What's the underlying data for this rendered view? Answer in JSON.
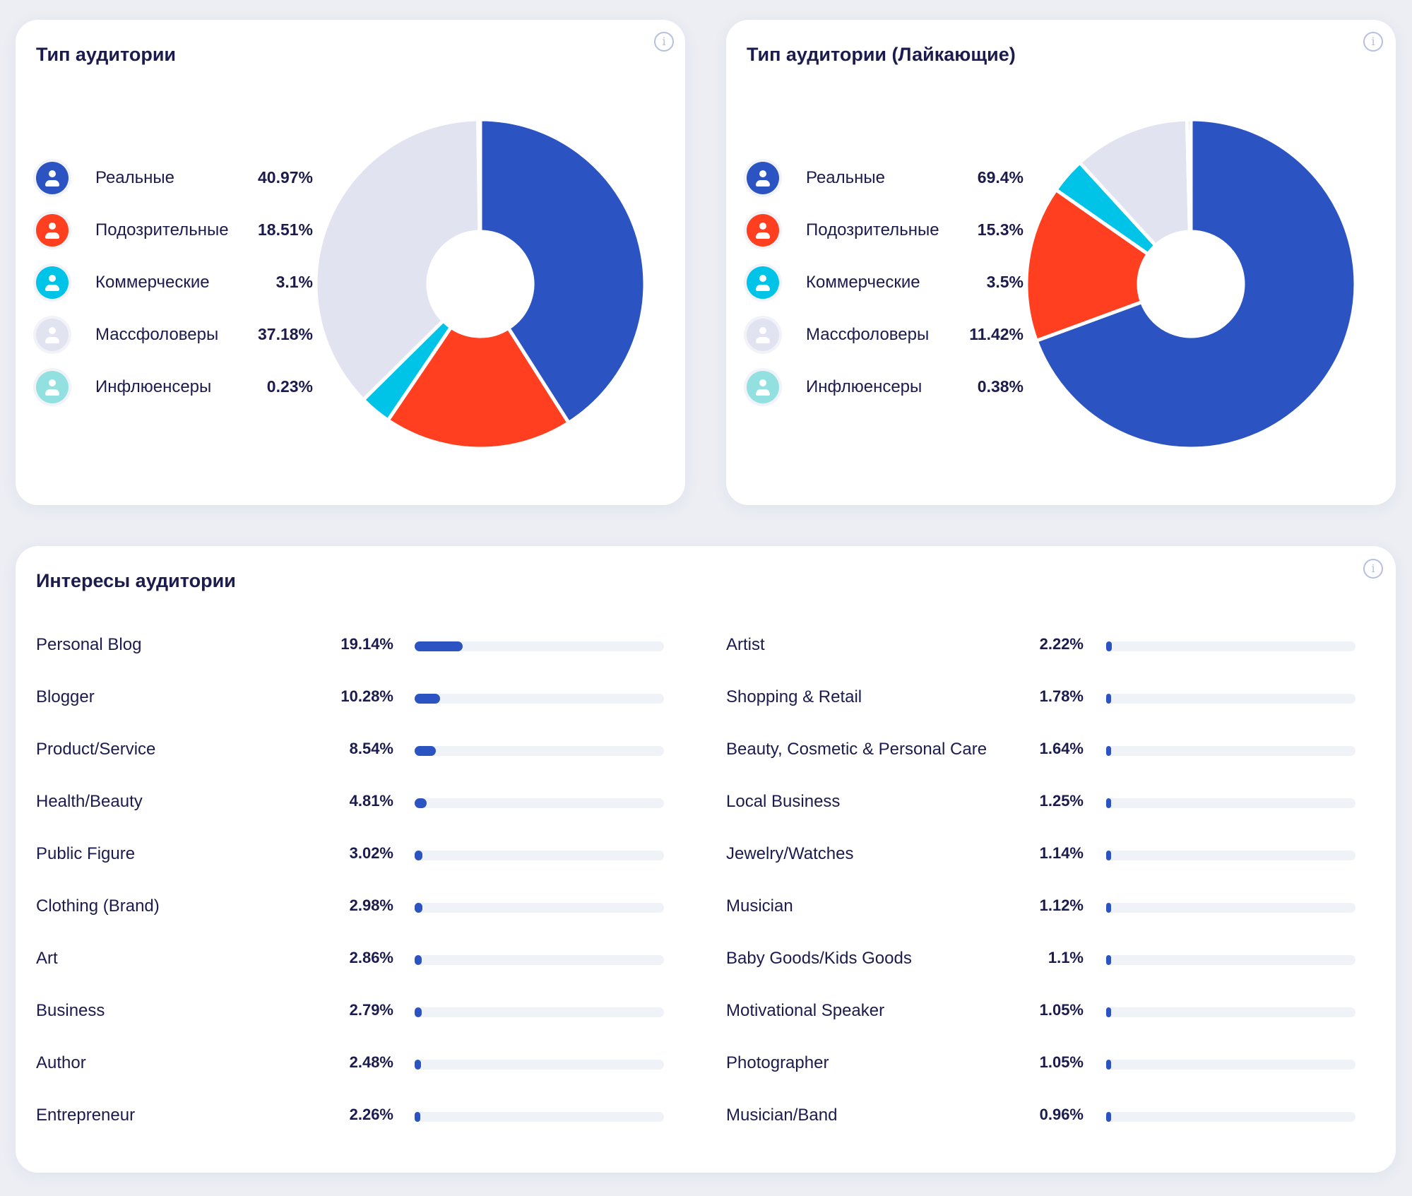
{
  "colors": {
    "real": "#2b54c2",
    "suspicious": "#ff3f1f",
    "commercial": "#00c3e8",
    "massfollowers": "#e1e3f1",
    "influencers": "#93e0e0",
    "bar": "#2b54c2"
  },
  "chart_data": [
    {
      "type": "pie",
      "title": "Тип аудитории",
      "categories": [
        "Реальные",
        "Подозрительные",
        "Коммерческие",
        "Массфоловеры",
        "Инфлюенсеры"
      ],
      "values": [
        40.97,
        18.51,
        3.1,
        37.18,
        0.23
      ],
      "labels": [
        "40.97%",
        "18.51%",
        "3.1%",
        "37.18%",
        "0.23%"
      ],
      "legend": "left"
    },
    {
      "type": "pie",
      "title": "Тип аудитории (Лайкающие)",
      "categories": [
        "Реальные",
        "Подозрительные",
        "Коммерческие",
        "Массфоловеры",
        "Инфлюенсеры"
      ],
      "values": [
        69.4,
        15.3,
        3.5,
        11.42,
        0.38
      ],
      "labels": [
        "69.4%",
        "15.3%",
        "3.5%",
        "11.42%",
        "0.38%"
      ],
      "legend": "left"
    },
    {
      "type": "bar",
      "title": "Интересы аудитории",
      "left": [
        {
          "name": "Personal Blog",
          "value": 19.14,
          "label": "19.14%"
        },
        {
          "name": "Blogger",
          "value": 10.28,
          "label": "10.28%"
        },
        {
          "name": "Product/Service",
          "value": 8.54,
          "label": "8.54%"
        },
        {
          "name": "Health/Beauty",
          "value": 4.81,
          "label": "4.81%"
        },
        {
          "name": "Public Figure",
          "value": 3.02,
          "label": "3.02%"
        },
        {
          "name": "Clothing (Brand)",
          "value": 2.98,
          "label": "2.98%"
        },
        {
          "name": "Art",
          "value": 2.86,
          "label": "2.86%"
        },
        {
          "name": "Business",
          "value": 2.79,
          "label": "2.79%"
        },
        {
          "name": "Author",
          "value": 2.48,
          "label": "2.48%"
        },
        {
          "name": "Entrepreneur",
          "value": 2.26,
          "label": "2.26%"
        }
      ],
      "right": [
        {
          "name": "Artist",
          "value": 2.22,
          "label": "2.22%"
        },
        {
          "name": "Shopping & Retail",
          "value": 1.78,
          "label": "1.78%"
        },
        {
          "name": "Beauty, Cosmetic & Personal Care",
          "value": 1.64,
          "label": "1.64%"
        },
        {
          "name": "Local Business",
          "value": 1.25,
          "label": "1.25%"
        },
        {
          "name": "Jewelry/Watches",
          "value": 1.14,
          "label": "1.14%"
        },
        {
          "name": "Musician",
          "value": 1.12,
          "label": "1.12%"
        },
        {
          "name": "Baby Goods/Kids Goods",
          "value": 1.1,
          "label": "1.1%"
        },
        {
          "name": "Motivational Speaker",
          "value": 1.05,
          "label": "1.05%"
        },
        {
          "name": "Photographer",
          "value": 1.05,
          "label": "1.05%"
        },
        {
          "name": "Musician/Band",
          "value": 0.96,
          "label": "0.96%"
        }
      ],
      "xlim": [
        0,
        100
      ]
    }
  ],
  "info_icon": "i"
}
